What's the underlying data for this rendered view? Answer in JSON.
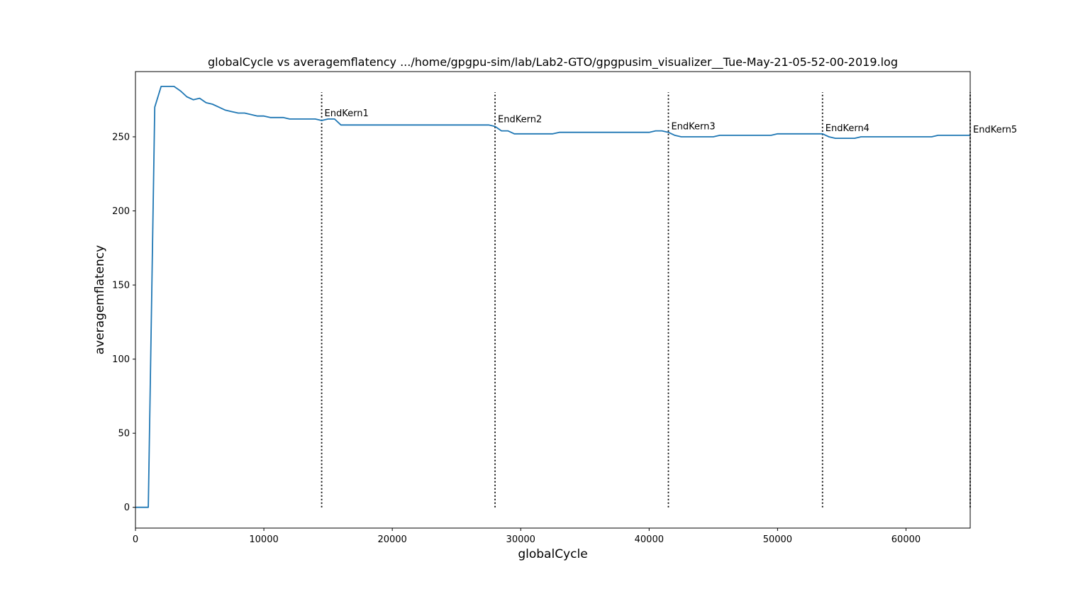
{
  "chart_data": {
    "type": "line",
    "title": "globalCycle vs averagemflatency .../home/gpgpu-sim/lab/Lab2-GTO/gpgpusim_visualizer__Tue-May-21-05-52-00-2019.log",
    "xlabel": "globalCycle",
    "ylabel": "averagemflatency",
    "xlim": [
      0,
      65000
    ],
    "ylim": [
      -14,
      294
    ],
    "xticks": [
      0,
      10000,
      20000,
      30000,
      40000,
      50000,
      60000
    ],
    "yticks": [
      0,
      50,
      100,
      150,
      200,
      250
    ],
    "grid": false,
    "line_color": "#1f77b4",
    "series": [
      {
        "x": [
          0,
          500,
          1000,
          1500,
          2000,
          2500,
          3000,
          3500,
          4000,
          4500,
          5000,
          5500,
          6000,
          6500,
          7000,
          7500,
          8000,
          8500,
          9000,
          9500,
          10000,
          10500,
          11000,
          11500,
          12000,
          12500,
          13000,
          13500,
          14000,
          14500,
          15000,
          15500,
          16000,
          16500,
          17000,
          20000,
          25000,
          27500,
          28000,
          28500,
          29000,
          29500,
          30000,
          32000,
          32500,
          33000,
          35000,
          40000,
          40500,
          41000,
          41500,
          42000,
          42500,
          43000,
          45000,
          45500,
          46000,
          49500,
          50000,
          50500,
          53000,
          53500,
          54000,
          54500,
          55000,
          56000,
          56500,
          57000,
          62000,
          62500,
          63000,
          65000
        ],
        "y": [
          0,
          0,
          0,
          270,
          284,
          284,
          284,
          281,
          277,
          275,
          276,
          273,
          272,
          270,
          268,
          267,
          266,
          266,
          265,
          264,
          264,
          263,
          263,
          263,
          262,
          262,
          262,
          262,
          262,
          261,
          262,
          262,
          258,
          258,
          258,
          258,
          258,
          258,
          257,
          254,
          254,
          252,
          252,
          252,
          252,
          253,
          253,
          253,
          254,
          254,
          253,
          251,
          250,
          250,
          250,
          251,
          251,
          251,
          252,
          252,
          252,
          252,
          250,
          249,
          249,
          249,
          250,
          250,
          250,
          251,
          251,
          251
        ]
      }
    ],
    "markers": [
      {
        "x": 14500,
        "label": "EndKern1"
      },
      {
        "x": 28000,
        "label": "EndKern2"
      },
      {
        "x": 41500,
        "label": "EndKern3"
      },
      {
        "x": 53500,
        "label": "EndKern4"
      },
      {
        "x": 65000,
        "label": "EndKern5"
      }
    ],
    "marker_label_y": [
      262,
      258,
      253,
      252,
      251
    ]
  }
}
